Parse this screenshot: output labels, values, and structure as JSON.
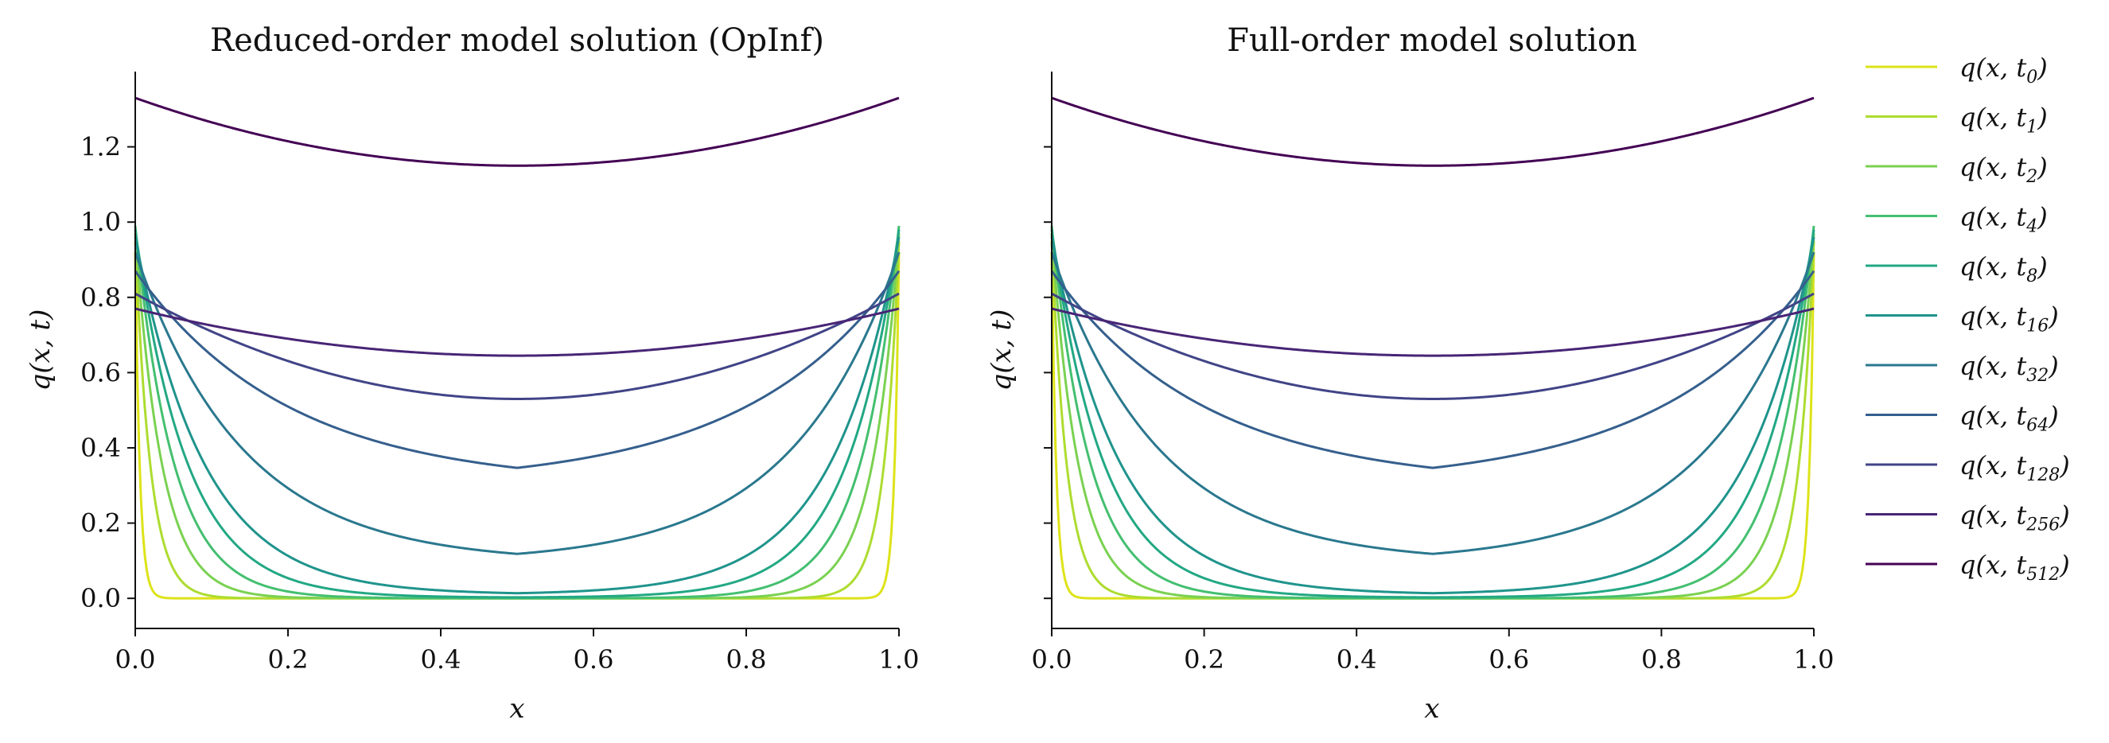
{
  "figure": {
    "legend_placement": "right",
    "legend": [
      {
        "label": "q(x, t",
        "sub": "0",
        "suffix": ")",
        "color": "#dde318"
      },
      {
        "label": "q(x, t",
        "sub": "1",
        "suffix": ")",
        "color": "#addc30"
      },
      {
        "label": "q(x, t",
        "sub": "2",
        "suffix": ")",
        "color": "#7ad151"
      },
      {
        "label": "q(x, t",
        "sub": "4",
        "suffix": ")",
        "color": "#44bf70"
      },
      {
        "label": "q(x, t",
        "sub": "8",
        "suffix": ")",
        "color": "#22a884"
      },
      {
        "label": "q(x, t",
        "sub": "16",
        "suffix": ")",
        "color": "#1f948c"
      },
      {
        "label": "q(x, t",
        "sub": "32",
        "suffix": ")",
        "color": "#2a788e"
      },
      {
        "label": "q(x, t",
        "sub": "64",
        "suffix": ")",
        "color": "#355f8d"
      },
      {
        "label": "q(x, t",
        "sub": "128",
        "suffix": ")",
        "color": "#414487"
      },
      {
        "label": "q(x, t",
        "sub": "256",
        "suffix": ")",
        "color": "#482576"
      },
      {
        "label": "q(x, t",
        "sub": "512",
        "suffix": ")",
        "color": "#440154"
      }
    ]
  },
  "chart_data": [
    {
      "type": "line",
      "title": "Reduced-order model solution (OpInf)",
      "xlabel": "x",
      "ylabel": "q(x, t)",
      "xlim": [
        0.0,
        1.0
      ],
      "ylim": [
        -0.08,
        1.4
      ],
      "xticks": [
        "0.0",
        "0.2",
        "0.4",
        "0.6",
        "0.8",
        "1.0"
      ],
      "yticks": [
        "0.0",
        "0.2",
        "0.4",
        "0.6",
        "0.8",
        "1.0",
        "1.2"
      ],
      "series": [
        {
          "name": "q(x,t0)",
          "edge": 0.92,
          "center": 0.0,
          "width": 0.006
        },
        {
          "name": "q(x,t1)",
          "edge": 0.95,
          "center": 0.0,
          "width": 0.02
        },
        {
          "name": "q(x,t2)",
          "edge": 0.97,
          "center": 0.0,
          "width": 0.035
        },
        {
          "name": "q(x,t4)",
          "edge": 0.99,
          "center": 0.0,
          "width": 0.05
        },
        {
          "name": "q(x,t8)",
          "edge": 0.98,
          "center": 0.002,
          "width": 0.068
        },
        {
          "name": "q(x,t16)",
          "edge": 0.96,
          "center": 0.01,
          "width": 0.09
        },
        {
          "name": "q(x,t32)",
          "edge": 0.92,
          "center": 0.095,
          "width": 0.14
        },
        {
          "name": "q(x,t64)",
          "edge": 0.87,
          "center": 0.3,
          "width": 0.2
        },
        {
          "name": "q(x,t128)",
          "edge": 0.81,
          "center": 0.53,
          "width": 0.3
        },
        {
          "name": "q(x,t256)",
          "edge": 0.77,
          "center": 0.645,
          "width": 0.28
        },
        {
          "name": "q(x,t512)",
          "edge": 1.33,
          "center": 1.15,
          "width": 0.32
        }
      ]
    },
    {
      "type": "line",
      "title": "Full-order model solution",
      "xlabel": "x",
      "ylabel": "q(x, t)",
      "xlim": [
        0.0,
        1.0
      ],
      "ylim": [
        -0.08,
        1.4
      ],
      "xticks": [
        "0.0",
        "0.2",
        "0.4",
        "0.6",
        "0.8",
        "1.0"
      ],
      "yticks": [
        "0.0",
        "0.2",
        "0.4",
        "0.6",
        "0.8",
        "1.0",
        "1.2"
      ],
      "series": [
        {
          "name": "q(x,t0)",
          "edge": 0.92,
          "center": 0.0,
          "width": 0.006
        },
        {
          "name": "q(x,t1)",
          "edge": 0.95,
          "center": 0.0,
          "width": 0.02
        },
        {
          "name": "q(x,t2)",
          "edge": 0.97,
          "center": 0.0,
          "width": 0.035
        },
        {
          "name": "q(x,t4)",
          "edge": 0.99,
          "center": 0.0,
          "width": 0.05
        },
        {
          "name": "q(x,t8)",
          "edge": 0.98,
          "center": 0.002,
          "width": 0.068
        },
        {
          "name": "q(x,t16)",
          "edge": 0.96,
          "center": 0.01,
          "width": 0.09
        },
        {
          "name": "q(x,t32)",
          "edge": 0.92,
          "center": 0.095,
          "width": 0.14
        },
        {
          "name": "q(x,t64)",
          "edge": 0.87,
          "center": 0.3,
          "width": 0.2
        },
        {
          "name": "q(x,t128)",
          "edge": 0.81,
          "center": 0.53,
          "width": 0.3
        },
        {
          "name": "q(x,t256)",
          "edge": 0.77,
          "center": 0.645,
          "width": 0.28
        },
        {
          "name": "q(x,t512)",
          "edge": 1.33,
          "center": 1.15,
          "width": 0.32
        }
      ]
    }
  ]
}
